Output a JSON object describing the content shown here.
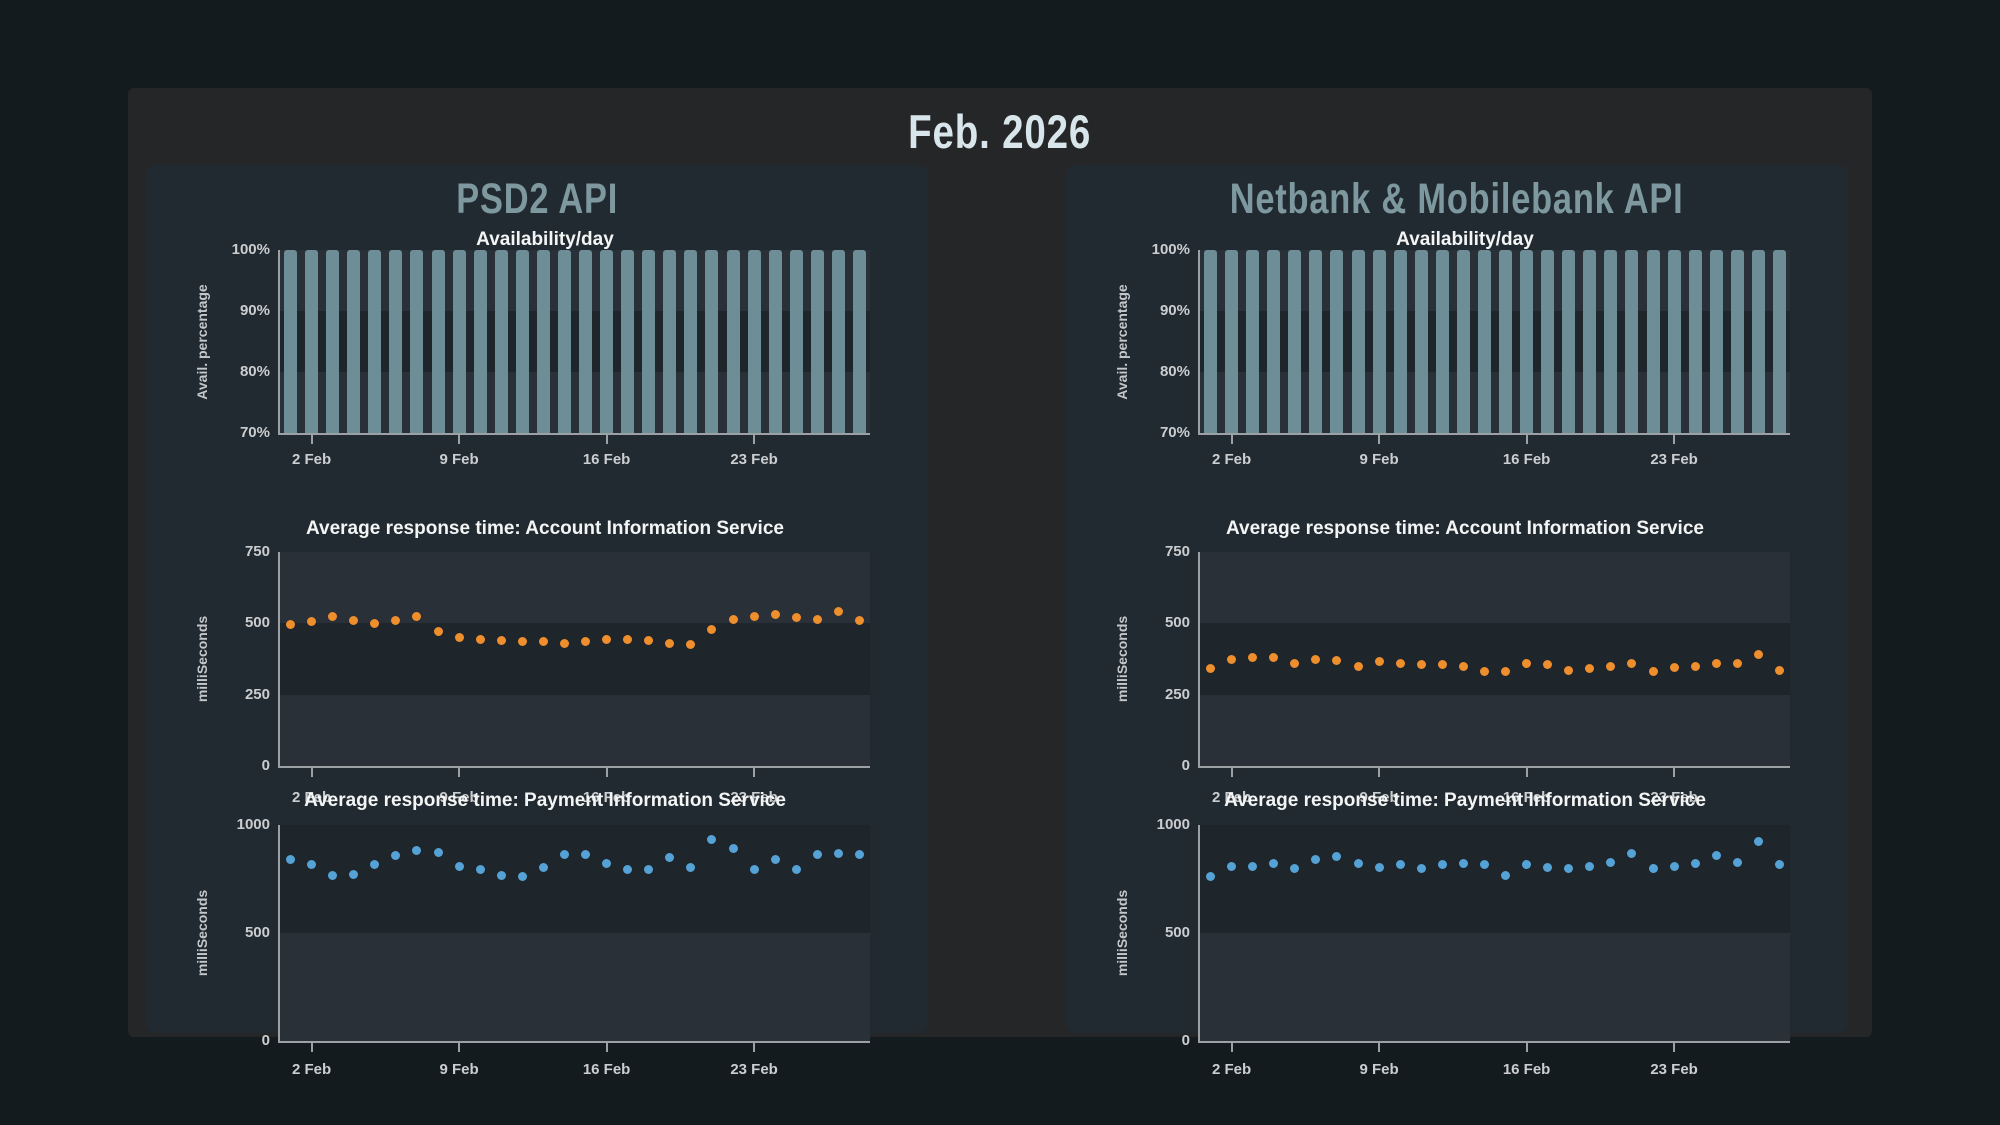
{
  "page_title": "Feb. 2026",
  "colors": {
    "background": "#141b1e",
    "container": "#242628",
    "panel": "#222a31",
    "band_shaded": "#1f262b",
    "plot_base": "#2a3037",
    "bar": "#6d8e96",
    "orange": "#ee8e2d",
    "blue": "#55a2d7",
    "axis": "#9ba1a5",
    "tick_text": "#cbced0",
    "panel_title_text": "#7d989e",
    "main_title_text": "#d8e5ea"
  },
  "x_axis": {
    "days_in_month": 28,
    "tick_days": [
      2,
      9,
      16,
      23
    ],
    "tick_labels": [
      "2 Feb",
      "9 Feb",
      "16 Feb",
      "23 Feb"
    ]
  },
  "panels": [
    {
      "title": "PSD2 API",
      "chart_indices": [
        0,
        1,
        2
      ]
    },
    {
      "title": "Netbank & Mobilebank API",
      "chart_indices": [
        3,
        4,
        5
      ]
    }
  ],
  "chart_data": [
    {
      "panel": "PSD2 API",
      "type": "bar",
      "title": "Availability/day",
      "ylabel": "Avail. percentage",
      "ylim": [
        70,
        100
      ],
      "yticks": [
        70,
        80,
        90,
        100
      ],
      "ytick_labels": [
        "70%",
        "80%",
        "90%",
        "100%"
      ],
      "series_color": "bar",
      "x": [
        1,
        2,
        3,
        4,
        5,
        6,
        7,
        8,
        9,
        10,
        11,
        12,
        13,
        14,
        15,
        16,
        17,
        18,
        19,
        20,
        21,
        22,
        23,
        24,
        25,
        26,
        27,
        28
      ],
      "values": [
        100,
        100,
        100,
        100,
        100,
        100,
        100,
        100,
        100,
        100,
        100,
        100,
        100,
        100,
        100,
        100,
        100,
        100,
        100,
        100,
        100,
        100,
        100,
        100,
        100,
        100,
        100,
        100
      ]
    },
    {
      "panel": "PSD2 API",
      "type": "scatter",
      "title": "Average response time: Account Information Service",
      "ylabel": "milliSeconds",
      "ylim": [
        0,
        750
      ],
      "yticks": [
        0,
        250,
        500,
        750
      ],
      "ytick_labels": [
        "0",
        "250",
        "500",
        "750"
      ],
      "series_color": "orange",
      "x": [
        1,
        2,
        3,
        4,
        5,
        6,
        7,
        8,
        9,
        10,
        11,
        12,
        13,
        14,
        15,
        16,
        17,
        18,
        19,
        20,
        21,
        22,
        23,
        24,
        25,
        26,
        27,
        28
      ],
      "values": [
        495,
        505,
        525,
        510,
        500,
        510,
        525,
        470,
        450,
        445,
        440,
        435,
        435,
        430,
        435,
        445,
        445,
        440,
        430,
        425,
        480,
        515,
        525,
        530,
        520,
        515,
        540,
        510
      ]
    },
    {
      "panel": "PSD2 API",
      "type": "scatter",
      "title": "Average response time: Payment Information Service",
      "ylabel": "milliSeconds",
      "ylim": [
        0,
        1000
      ],
      "yticks": [
        0,
        500,
        1000
      ],
      "ytick_labels": [
        "0",
        "500",
        "1000"
      ],
      "series_color": "blue",
      "x": [
        1,
        2,
        3,
        4,
        5,
        6,
        7,
        8,
        9,
        10,
        11,
        12,
        13,
        14,
        15,
        16,
        17,
        18,
        19,
        20,
        21,
        22,
        23,
        24,
        25,
        26,
        27,
        28
      ],
      "values": [
        840,
        815,
        765,
        770,
        815,
        860,
        880,
        875,
        810,
        795,
        765,
        760,
        805,
        865,
        865,
        820,
        795,
        795,
        850,
        805,
        935,
        890,
        795,
        840,
        795,
        865,
        870,
        865
      ]
    },
    {
      "panel": "Netbank & Mobilebank API",
      "type": "bar",
      "title": "Availability/day",
      "ylabel": "Avail. percentage",
      "ylim": [
        70,
        100
      ],
      "yticks": [
        70,
        80,
        90,
        100
      ],
      "ytick_labels": [
        "70%",
        "80%",
        "90%",
        "100%"
      ],
      "series_color": "bar",
      "x": [
        1,
        2,
        3,
        4,
        5,
        6,
        7,
        8,
        9,
        10,
        11,
        12,
        13,
        14,
        15,
        16,
        17,
        18,
        19,
        20,
        21,
        22,
        23,
        24,
        25,
        26,
        27,
        28
      ],
      "values": [
        100,
        100,
        100,
        100,
        100,
        100,
        100,
        100,
        100,
        100,
        100,
        100,
        100,
        100,
        100,
        100,
        100,
        100,
        100,
        100,
        100,
        100,
        100,
        100,
        100,
        100,
        100,
        100
      ]
    },
    {
      "panel": "Netbank & Mobilebank API",
      "type": "scatter",
      "title": "Average response time: Account Information Service",
      "ylabel": "milliSeconds",
      "ylim": [
        0,
        750
      ],
      "yticks": [
        0,
        250,
        500,
        750
      ],
      "ytick_labels": [
        "0",
        "250",
        "500",
        "750"
      ],
      "series_color": "orange",
      "x": [
        1,
        2,
        3,
        4,
        5,
        6,
        7,
        8,
        9,
        10,
        11,
        12,
        13,
        14,
        15,
        16,
        17,
        18,
        19,
        20,
        21,
        22,
        23,
        24,
        25,
        26,
        27,
        28
      ],
      "values": [
        340,
        375,
        380,
        380,
        360,
        375,
        370,
        350,
        365,
        360,
        355,
        355,
        350,
        330,
        330,
        360,
        355,
        335,
        340,
        350,
        360,
        330,
        345,
        350,
        360,
        360,
        390,
        335
      ]
    },
    {
      "panel": "Netbank & Mobilebank API",
      "type": "scatter",
      "title": "Average response time: Payment Information Service",
      "ylabel": "milliSeconds",
      "ylim": [
        0,
        1000
      ],
      "yticks": [
        0,
        500,
        1000
      ],
      "ytick_labels": [
        "0",
        "500",
        "1000"
      ],
      "series_color": "blue",
      "x": [
        1,
        2,
        3,
        4,
        5,
        6,
        7,
        8,
        9,
        10,
        11,
        12,
        13,
        14,
        15,
        16,
        17,
        18,
        19,
        20,
        21,
        22,
        23,
        24,
        25,
        26,
        27,
        28
      ],
      "values": [
        760,
        810,
        810,
        820,
        800,
        840,
        855,
        820,
        805,
        815,
        800,
        815,
        820,
        815,
        765,
        815,
        805,
        800,
        810,
        825,
        870,
        800,
        810,
        820,
        860,
        825,
        925,
        815
      ]
    }
  ]
}
